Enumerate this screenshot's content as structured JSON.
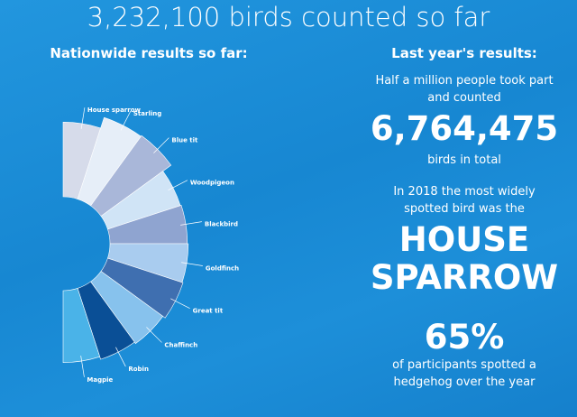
{
  "title": "3,232,100 birds counted so far",
  "chart_data": {
    "type": "rose",
    "title": "Nationwide results so far:",
    "categories": [
      "House sparrow",
      "Starling",
      "Blue tit",
      "Woodpigeon",
      "Blackbird",
      "Goldfinch",
      "Great tit",
      "Chaffinch",
      "Robin",
      "Magpie"
    ],
    "values": [
      81,
      93,
      94,
      83,
      84,
      85,
      86,
      83,
      81,
      78
    ],
    "colors": [
      "#d6dbea",
      "#e6eef8",
      "#a9b7d9",
      "#d0e4f6",
      "#8fa4d0",
      "#a9ccef",
      "#3f6fb0",
      "#87c2ed",
      "#0a4f96",
      "#4ab3e8"
    ]
  },
  "last_year": {
    "heading": "Last year's results:",
    "intro_lines": [
      "Half a million people took part",
      "and counted"
    ],
    "count": "6,764,475",
    "count_note": "birds in total",
    "spotted_lines": [
      "In 2018 the most widely",
      "spotted bird was the"
    ],
    "bird_lines": [
      "HOUSE",
      "SPARROW"
    ],
    "percent": "65%",
    "hedgehog_lines": [
      "of participants spotted a",
      "hedgehog over the year"
    ]
  }
}
